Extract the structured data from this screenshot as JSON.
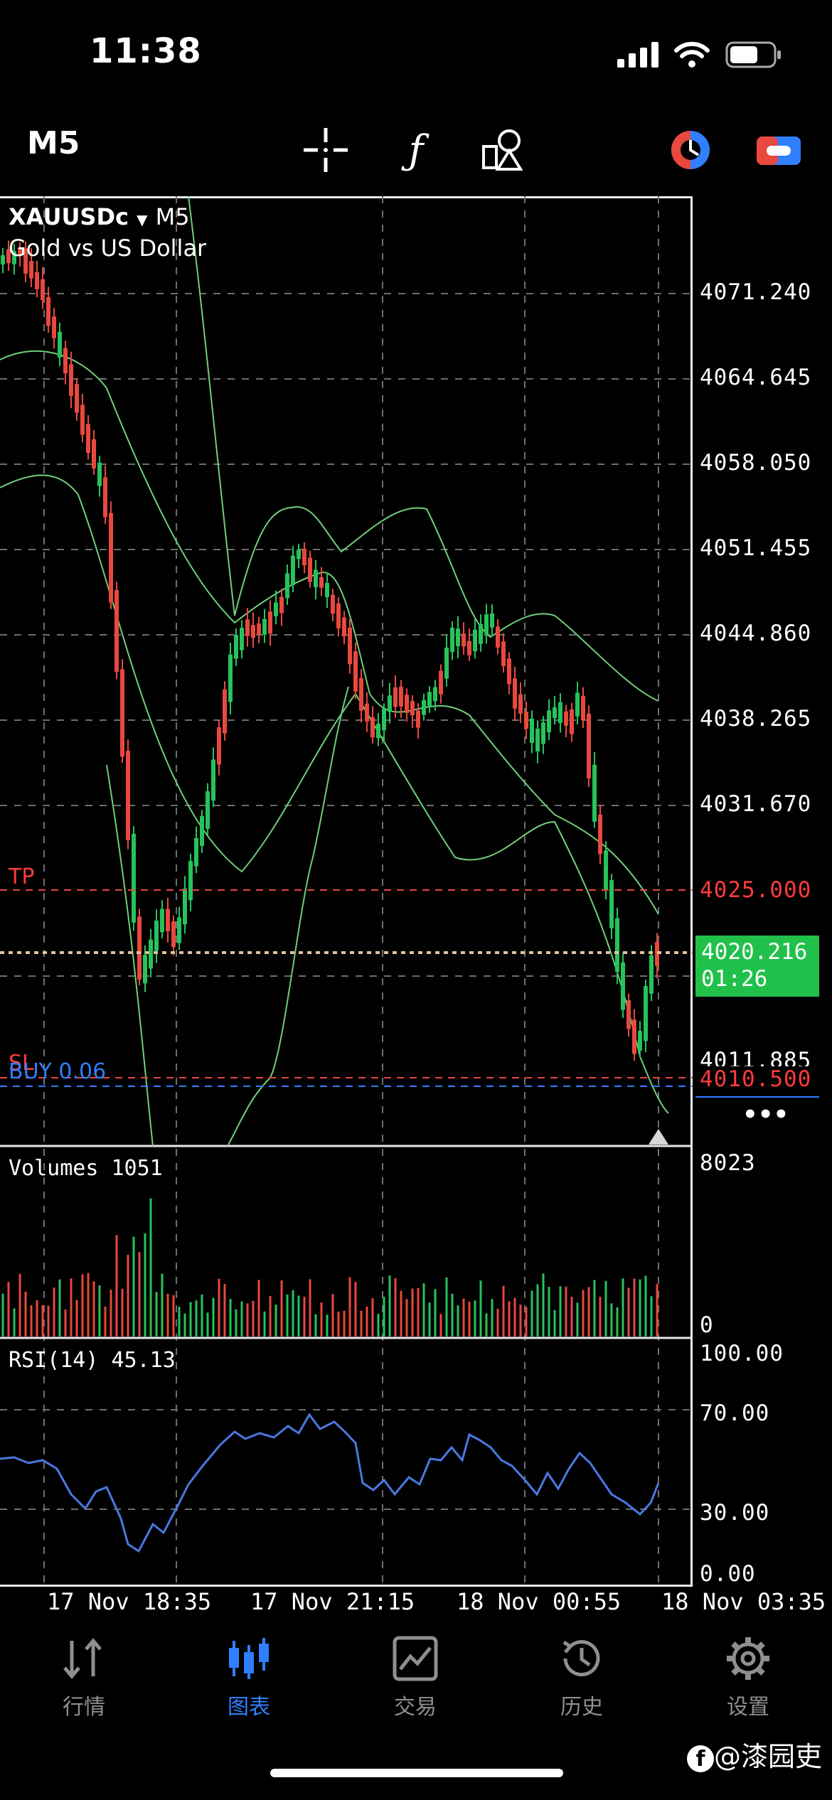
{
  "status_bar": {
    "time": "11:38"
  },
  "toolbar": {
    "timeframe": "M5",
    "icons": [
      "crosshair-icon",
      "function-icon",
      "objects-icon",
      "accounts-icon",
      "connection-icon"
    ]
  },
  "chart": {
    "symbol": "XAUUSDc",
    "symbol_timeframe": "M5",
    "description": "Gold vs US Dollar",
    "price_axis": [
      "4071.240",
      "4064.645",
      "4058.050",
      "4051.455",
      "4044.860",
      "4038.265",
      "4031.670",
      "4011.885"
    ],
    "tp": {
      "label": "TP",
      "price": "4025.000"
    },
    "sl": {
      "label": "SL",
      "price": "4010.500"
    },
    "position": {
      "label": "BUY 0.06"
    },
    "current": {
      "price": "4020.216",
      "countdown": "01:26"
    },
    "more": "•••",
    "colors": {
      "up": "#26c35a",
      "down": "#e8483d",
      "bands": "#6fcf7a",
      "rsi": "#4a78e0",
      "tp_sl": "#ff3b3b",
      "buy": "#2f7fff"
    }
  },
  "volumes": {
    "label": "Volumes 1051",
    "axis_max": "8023",
    "axis_min": "0"
  },
  "rsi": {
    "label": "RSI(14) 45.13",
    "levels": [
      "100.00",
      "70.00",
      "30.00",
      "0.00"
    ]
  },
  "time_axis": [
    "17 Nov 18:35",
    "17 Nov 21:15",
    "18 Nov 00:55",
    "18 Nov 03:35"
  ],
  "tabbar": {
    "tabs": [
      {
        "label": "行情",
        "icon": "quotes-icon"
      },
      {
        "label": "图表",
        "icon": "chart-icon"
      },
      {
        "label": "交易",
        "icon": "trade-icon"
      },
      {
        "label": "历史",
        "icon": "history-icon"
      },
      {
        "label": "设置",
        "icon": "settings-icon"
      }
    ],
    "active": "图表"
  },
  "watermark": "@漆园吏"
}
